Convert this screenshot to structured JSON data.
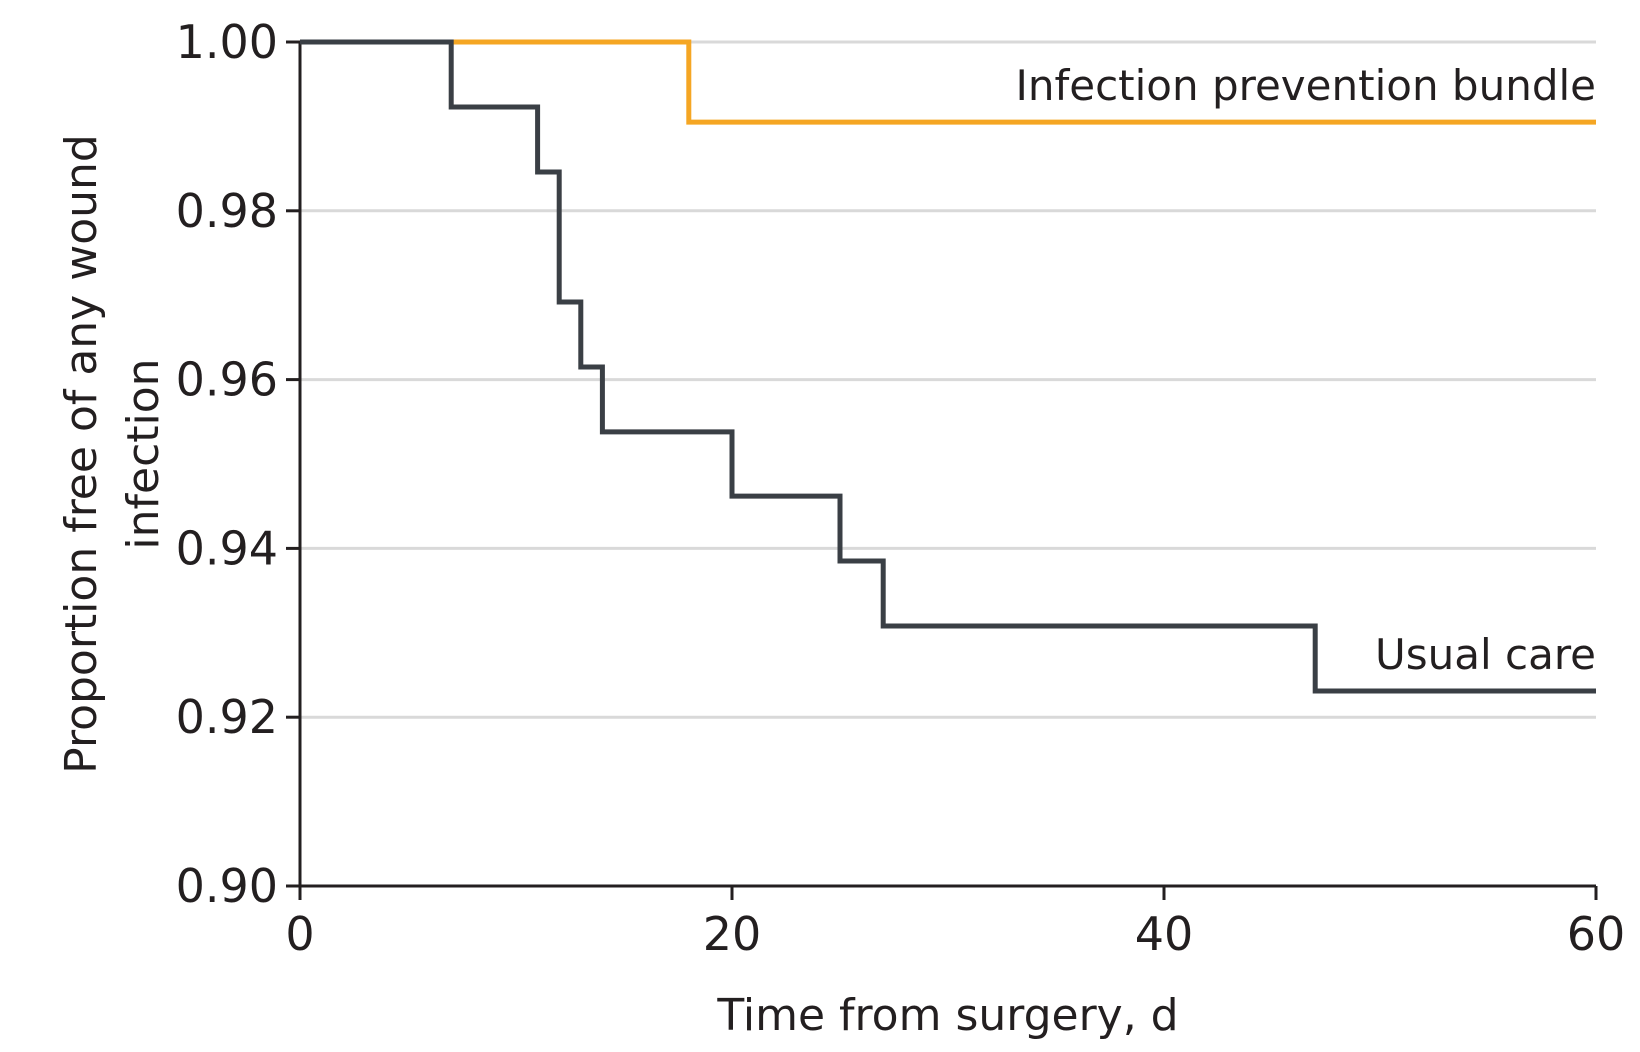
{
  "chart_data": {
    "type": "line",
    "step": true,
    "xlabel": "Time from surgery, d",
    "ylabel_lines": [
      "Proportion free of any wound",
      "infection"
    ],
    "xlim": [
      0,
      60
    ],
    "ylim": [
      0.9,
      1.0
    ],
    "xticks": [
      0,
      20,
      40,
      60
    ],
    "xtick_labels": [
      "0",
      "20",
      "40",
      "60"
    ],
    "yticks": [
      0.9,
      0.92,
      0.94,
      0.96,
      0.98,
      1.0
    ],
    "ytick_labels": [
      "0.90",
      "0.92",
      "0.94",
      "0.96",
      "0.98",
      "1.00"
    ],
    "grid": "horizontal",
    "series": [
      {
        "name": "Infection prevention bundle",
        "color": "#f5a623",
        "x": [
          0,
          18,
          60
        ],
        "y": [
          1.0,
          0.9905,
          0.9905
        ]
      },
      {
        "name": "Usual care",
        "color": "#3a3f45",
        "x": [
          0,
          7,
          11,
          12,
          13,
          14,
          20,
          25,
          27,
          47,
          60
        ],
        "y": [
          1.0,
          0.9923,
          0.9846,
          0.9692,
          0.9615,
          0.9538,
          0.9462,
          0.9385,
          0.9308,
          0.9231,
          0.9231
        ]
      }
    ]
  }
}
